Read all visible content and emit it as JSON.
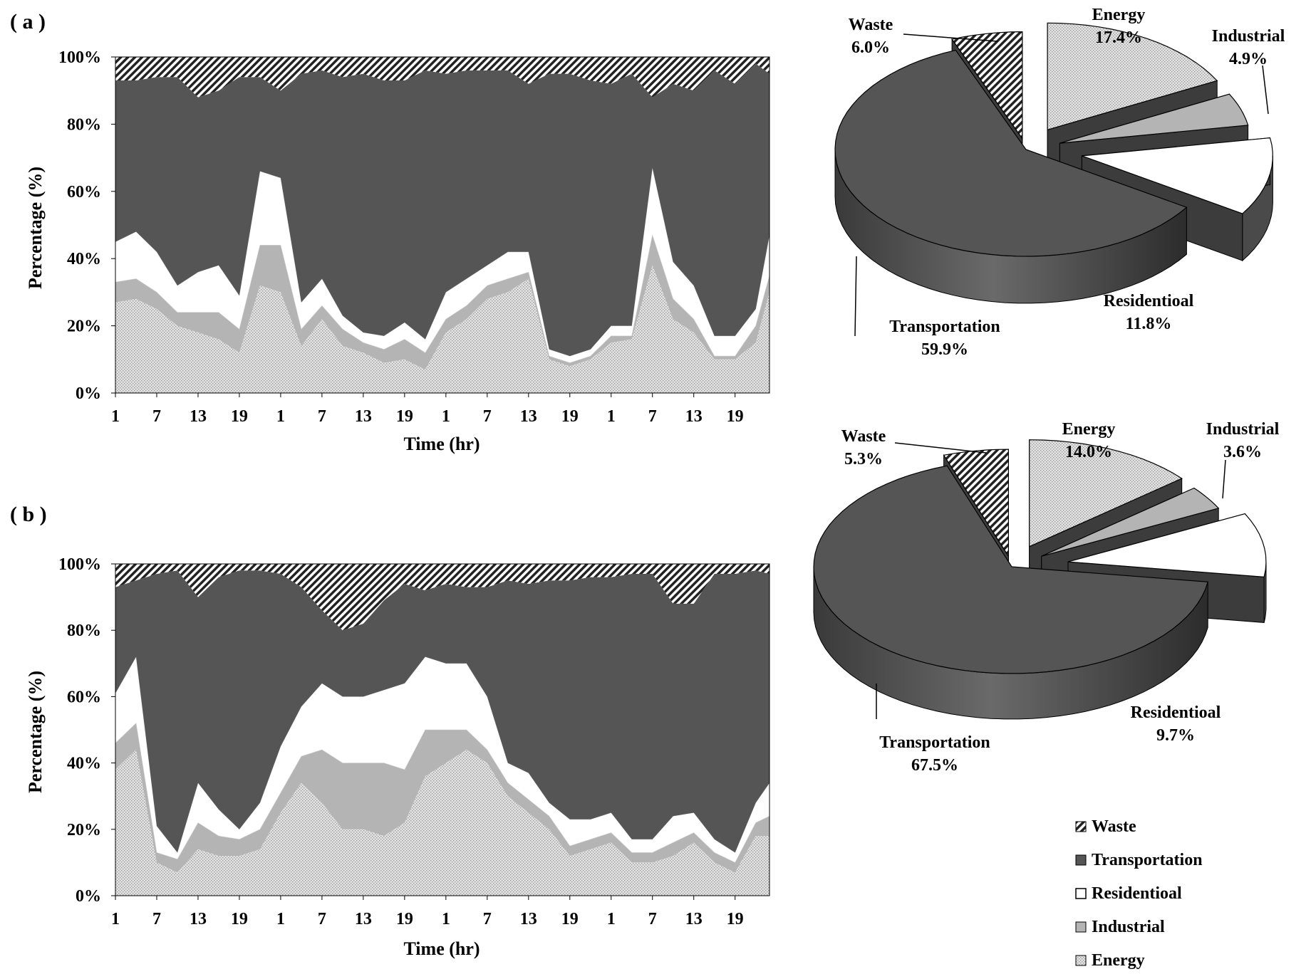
{
  "panels": [
    {
      "label": "( a )"
    },
    {
      "label": "( b )"
    }
  ],
  "colors": {
    "waste": "#222222",
    "transportation": "#555555",
    "residential": "#ffffff",
    "industrial": "#b4b4b4",
    "energy": "#d8d8d8",
    "outline": "#000000"
  },
  "legend": {
    "items": [
      {
        "key": "waste",
        "label": "Waste"
      },
      {
        "key": "transportation",
        "label": "Transportation"
      },
      {
        "key": "residential",
        "label": "Residentioal"
      },
      {
        "key": "industrial",
        "label": "Industrial"
      },
      {
        "key": "energy",
        "label": "Energy"
      }
    ]
  },
  "chart_data": [
    {
      "type": "area",
      "panel": "a",
      "stacked": true,
      "xlabel": "Time (hr)",
      "ylabel": "Percentage (%)",
      "ylim": [
        0,
        100
      ],
      "yticks": [
        "0%",
        "20%",
        "40%",
        "60%",
        "80%",
        "100%"
      ],
      "xtick_labels": [
        "1",
        "7",
        "13",
        "19",
        "1",
        "7",
        "13",
        "19",
        "1",
        "7",
        "13",
        "19",
        "1",
        "7",
        "13",
        "19"
      ],
      "x_hours": [
        1,
        4,
        7,
        10,
        13,
        16,
        19,
        22,
        25,
        28,
        31,
        34,
        37,
        40,
        43,
        46,
        49,
        52,
        55,
        58,
        61,
        64,
        67,
        70,
        73,
        76,
        79,
        82,
        85,
        88,
        91,
        94,
        96
      ],
      "series": [
        {
          "name": "Energy",
          "values": [
            27,
            28,
            25,
            20,
            18,
            16,
            12,
            32,
            30,
            14,
            22,
            14,
            12,
            9,
            10,
            7,
            18,
            22,
            28,
            30,
            34,
            10,
            8,
            10,
            15,
            16,
            38,
            22,
            18,
            10,
            10,
            15,
            30
          ]
        },
        {
          "name": "Industrial",
          "values": [
            6,
            6,
            5,
            4,
            6,
            8,
            7,
            12,
            14,
            5,
            4,
            5,
            3,
            4,
            6,
            5,
            4,
            4,
            4,
            4,
            2,
            1,
            1,
            1,
            2,
            1,
            9,
            6,
            4,
            1,
            1,
            5,
            5
          ]
        },
        {
          "name": "Residentioal",
          "values": [
            12,
            14,
            12,
            8,
            12,
            14,
            10,
            22,
            20,
            8,
            8,
            4,
            3,
            4,
            5,
            4,
            8,
            8,
            6,
            8,
            6,
            2,
            2,
            2,
            3,
            3,
            20,
            11,
            10,
            6,
            6,
            5,
            12
          ]
        },
        {
          "name": "Transportation",
          "values": [
            48,
            45,
            52,
            62,
            52,
            52,
            65,
            28,
            26,
            68,
            62,
            71,
            77,
            76,
            72,
            80,
            65,
            62,
            58,
            54,
            50,
            82,
            84,
            80,
            72,
            75,
            21,
            53,
            58,
            79,
            75,
            73,
            48
          ]
        },
        {
          "name": "Waste",
          "values": [
            7,
            7,
            6,
            6,
            12,
            10,
            6,
            6,
            10,
            5,
            4,
            6,
            5,
            7,
            7,
            4,
            5,
            4,
            4,
            4,
            8,
            5,
            5,
            7,
            8,
            5,
            12,
            8,
            10,
            4,
            8,
            2,
            5
          ]
        }
      ]
    },
    {
      "type": "area",
      "panel": "b",
      "stacked": true,
      "xlabel": "Time (hr)",
      "ylabel": "Percentage (%)",
      "ylim": [
        0,
        100
      ],
      "yticks": [
        "0%",
        "20%",
        "40%",
        "60%",
        "80%",
        "100%"
      ],
      "xtick_labels": [
        "1",
        "7",
        "13",
        "19",
        "1",
        "7",
        "13",
        "19",
        "1",
        "7",
        "13",
        "19",
        "1",
        "7",
        "13",
        "19"
      ],
      "x_hours": [
        1,
        4,
        7,
        10,
        13,
        16,
        19,
        22,
        25,
        28,
        31,
        34,
        37,
        40,
        43,
        46,
        49,
        52,
        55,
        58,
        61,
        64,
        67,
        70,
        73,
        76,
        79,
        82,
        85,
        88,
        91,
        94,
        96
      ],
      "series": [
        {
          "name": "Energy",
          "values": [
            38,
            44,
            10,
            7,
            14,
            12,
            12,
            14,
            25,
            34,
            28,
            20,
            20,
            18,
            22,
            36,
            40,
            44,
            40,
            30,
            25,
            20,
            12,
            14,
            16,
            10,
            10,
            12,
            16,
            10,
            7,
            18,
            18
          ]
        },
        {
          "name": "Industrial",
          "values": [
            8,
            8,
            3,
            4,
            8,
            6,
            5,
            6,
            6,
            8,
            16,
            20,
            20,
            22,
            16,
            14,
            10,
            6,
            4,
            4,
            4,
            4,
            3,
            3,
            3,
            3,
            3,
            4,
            3,
            3,
            3,
            4,
            6
          ]
        },
        {
          "name": "Residentioal",
          "values": [
            15,
            20,
            8,
            2,
            12,
            8,
            3,
            8,
            14,
            15,
            20,
            20,
            20,
            22,
            26,
            22,
            20,
            20,
            16,
            6,
            8,
            4,
            8,
            6,
            6,
            4,
            4,
            8,
            6,
            4,
            3,
            6,
            10
          ]
        },
        {
          "name": "Transportation",
          "values": [
            32,
            23,
            76,
            85,
            56,
            70,
            78,
            70,
            52,
            36,
            22,
            20,
            22,
            27,
            30,
            20,
            24,
            23,
            33,
            55,
            57,
            67,
            72,
            73,
            71,
            80,
            80,
            64,
            63,
            80,
            84,
            70,
            63
          ]
        },
        {
          "name": "Waste",
          "values": [
            7,
            5,
            3,
            2,
            10,
            4,
            2,
            2,
            3,
            7,
            14,
            20,
            18,
            11,
            6,
            8,
            6,
            7,
            7,
            5,
            6,
            5,
            5,
            4,
            4,
            3,
            3,
            12,
            12,
            3,
            3,
            2,
            3
          ]
        }
      ]
    },
    {
      "type": "pie",
      "panel": "a",
      "labels": [
        "Energy",
        "Industrial",
        "Residentioal",
        "Transportation",
        "Waste"
      ],
      "values": [
        17.4,
        4.9,
        11.8,
        59.9,
        6.0
      ],
      "value_labels": [
        "17.4%",
        "4.9%",
        "11.8%",
        "59.9%",
        "6.0%"
      ],
      "style": "3d exploded"
    },
    {
      "type": "pie",
      "panel": "b",
      "labels": [
        "Energy",
        "Industrial",
        "Residentioal",
        "Transportation",
        "Waste"
      ],
      "values": [
        14.0,
        3.6,
        9.7,
        67.5,
        5.3
      ],
      "value_labels": [
        "14.0%",
        "3.6%",
        "9.7%",
        "67.5%",
        "5.3%"
      ],
      "style": "3d exploded"
    }
  ]
}
